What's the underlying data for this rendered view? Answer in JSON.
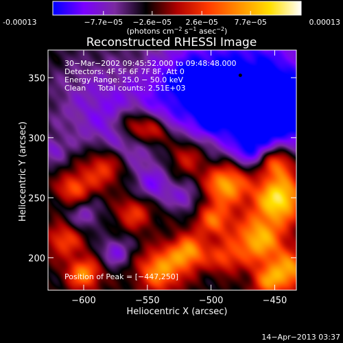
{
  "colorbar": {
    "tick_labels": [
      "-0.00013",
      "−7.7e−05",
      "−2.6e−05",
      "2.6e−05",
      "7.7e−05",
      "0.00013"
    ],
    "tick_values": [
      -0.00013,
      -7.7e-05,
      -2.6e-05,
      2.6e-05,
      7.7e-05,
      0.00013
    ],
    "range": [
      -0.00013,
      0.00013
    ],
    "units": {
      "main": "(photons cm",
      "exp1": "−2",
      "mid": " s",
      "exp2": "−1",
      "mid2": " asec",
      "exp3": "−2",
      "end": ")"
    },
    "colors": [
      "#0000ff",
      "#7a00ff",
      "#7a2aa0",
      "#000000",
      "#b00000",
      "#ff3a00",
      "#ff9000",
      "#ffe000",
      "#ffffff"
    ]
  },
  "chart_data": {
    "type": "heatmap",
    "title": "Reconstructed RHESSI Image",
    "xlabel": "Heliocentric X (arcsec)",
    "ylabel": "Heliocentric Y (arcsec)",
    "xlim": [
      -628,
      -433
    ],
    "ylim": [
      173,
      373
    ],
    "xticks": [
      -600,
      -550,
      -500,
      -450
    ],
    "yticks": [
      200,
      250,
      300,
      350
    ],
    "xtick_labels": [
      "−600",
      "−550",
      "−500",
      "−450"
    ],
    "ytick_labels": [
      "200",
      "250",
      "300",
      "350"
    ],
    "info_lines": [
      "30−Mar−2002 09:45:52.000 to 09:48:48.000",
      "Detectors: 4F 5F 6F 7F 8F, Att 0",
      "Energy Range: 25.0 − 50.0 keV",
      "Clean     Total counts: 2.51E+03"
    ],
    "peak_text": "Position of Peak = [−447,250]",
    "peak": [
      -447,
      250
    ],
    "marker": [
      -477,
      352
    ],
    "value_scale": 0.00013,
    "blobs": [
      {
        "x": -470,
        "y": 340,
        "s": 40,
        "a": -1.0
      },
      {
        "x": -520,
        "y": 345,
        "s": 22,
        "a": -0.55
      },
      {
        "x": -445,
        "y": 320,
        "s": 22,
        "a": -0.6
      },
      {
        "x": -590,
        "y": 330,
        "s": 30,
        "a": -0.4
      },
      {
        "x": -560,
        "y": 300,
        "s": 25,
        "a": -0.35
      },
      {
        "x": -447,
        "y": 250,
        "s": 14,
        "a": 1.3
      },
      {
        "x": -488,
        "y": 262,
        "s": 12,
        "a": 1.1
      },
      {
        "x": -463,
        "y": 215,
        "s": 14,
        "a": 1.0
      },
      {
        "x": -448,
        "y": 280,
        "s": 10,
        "a": 0.9
      },
      {
        "x": -498,
        "y": 232,
        "s": 10,
        "a": 0.7
      },
      {
        "x": -438,
        "y": 190,
        "s": 11,
        "a": 0.85
      },
      {
        "x": -520,
        "y": 285,
        "s": 12,
        "a": 0.6
      },
      {
        "x": -545,
        "y": 305,
        "s": 9,
        "a": 0.8
      },
      {
        "x": -562,
        "y": 312,
        "s": 9,
        "a": 0.75
      },
      {
        "x": -585,
        "y": 275,
        "s": 12,
        "a": 0.7
      },
      {
        "x": -608,
        "y": 258,
        "s": 9,
        "a": 0.65
      },
      {
        "x": -615,
        "y": 215,
        "s": 10,
        "a": 0.6
      },
      {
        "x": -600,
        "y": 187,
        "s": 9,
        "a": 0.85
      },
      {
        "x": -540,
        "y": 190,
        "s": 12,
        "a": 0.9
      },
      {
        "x": -518,
        "y": 205,
        "s": 10,
        "a": 0.9
      },
      {
        "x": -560,
        "y": 238,
        "s": 10,
        "a": 0.55
      },
      {
        "x": -575,
        "y": 205,
        "s": 9,
        "a": -0.5
      },
      {
        "x": -545,
        "y": 260,
        "s": 11,
        "a": -0.45
      },
      {
        "x": -520,
        "y": 250,
        "s": 9,
        "a": -0.4
      },
      {
        "x": -470,
        "y": 290,
        "s": 9,
        "a": -0.4
      },
      {
        "x": -600,
        "y": 235,
        "s": 10,
        "a": -0.4
      },
      {
        "x": -490,
        "y": 200,
        "s": 9,
        "a": 0.5
      },
      {
        "x": -455,
        "y": 180,
        "s": 9,
        "a": 0.7
      },
      {
        "x": -625,
        "y": 290,
        "s": 8,
        "a": -0.35
      },
      {
        "x": -500,
        "y": 315,
        "s": 10,
        "a": -0.35
      }
    ]
  },
  "footer": {
    "date": "14−Apr−2013 03:37"
  }
}
